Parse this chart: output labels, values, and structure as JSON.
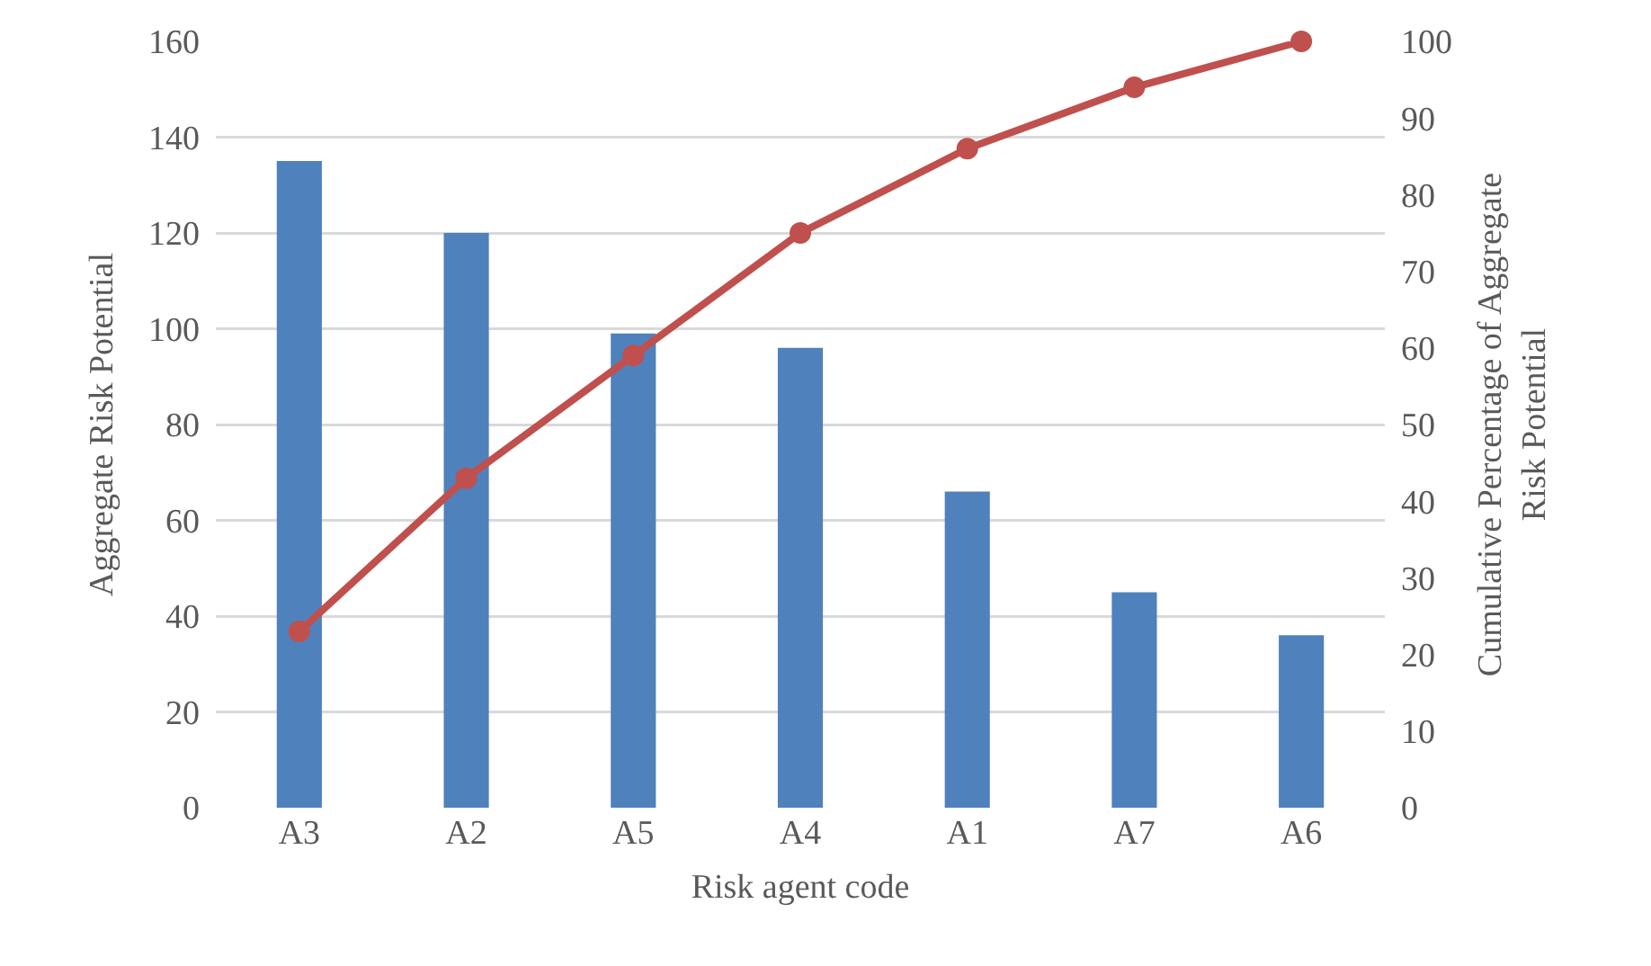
{
  "chart_data": {
    "type": "bar",
    "xlabel": "Risk agent code",
    "ylabel": "Aggregate Risk Potential",
    "y2label": "Cumulative Percentage of Aggregate Risk Potential",
    "categories": [
      "A3",
      "A2",
      "A5",
      "A4",
      "A1",
      "A7",
      "A6"
    ],
    "series": [
      {
        "color": "#4f81bd",
        "values": [
          135,
          120,
          99,
          96,
          66,
          45,
          36
        ]
      },
      {
        "type": "line",
        "axis": "y2",
        "color": "#c0504d",
        "marker": "circle",
        "line_style": "solid",
        "values": [
          23,
          43,
          59,
          75,
          86,
          94,
          100
        ]
      }
    ],
    "ylim": [
      0,
      160
    ],
    "yticks": [
      0,
      20,
      40,
      60,
      80,
      100,
      120,
      140,
      160
    ],
    "y2lim": [
      0,
      100
    ],
    "y2ticks": [
      0,
      10,
      20,
      30,
      40,
      50,
      60,
      70,
      80,
      90,
      100
    ],
    "grid": "y"
  }
}
